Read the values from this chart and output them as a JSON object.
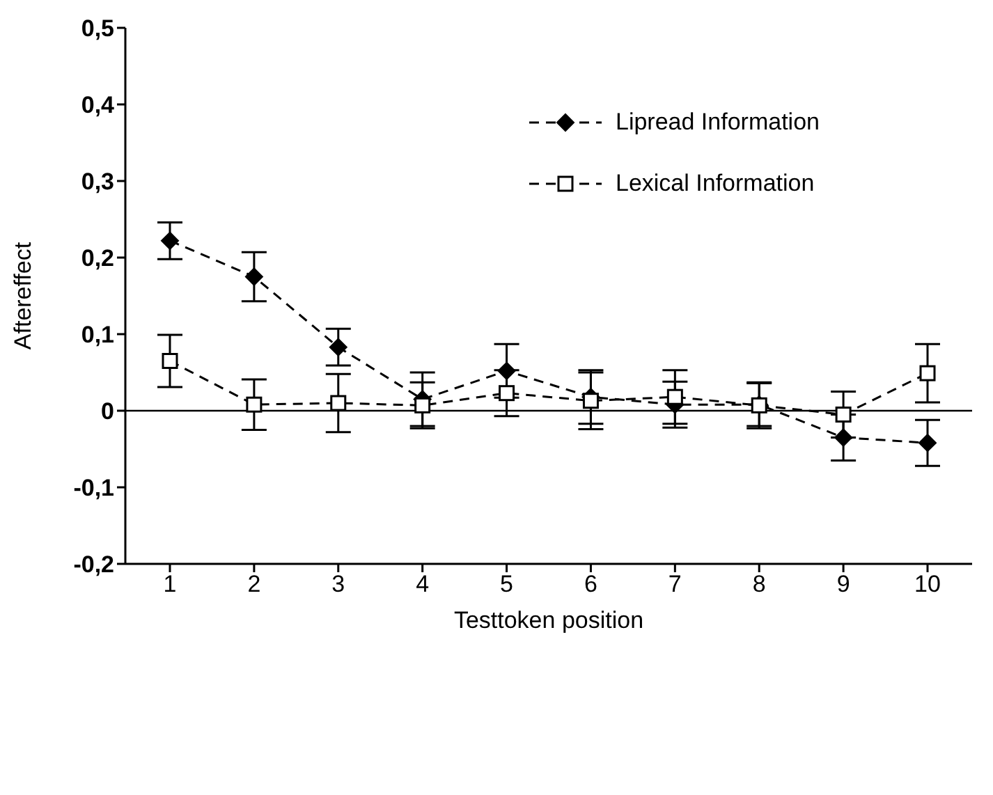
{
  "chart_data": {
    "type": "line",
    "xlabel": "Testtoken position",
    "ylabel": "Aftereffect",
    "categories": [
      "1",
      "2",
      "3",
      "4",
      "5",
      "6",
      "7",
      "8",
      "9",
      "10"
    ],
    "series": [
      {
        "name": "Lipread Information",
        "color": "#000000",
        "marker": "diamond",
        "line_style": "dashed",
        "values": [
          0.222,
          0.175,
          0.083,
          0.015,
          0.052,
          0.018,
          0.008,
          0.008,
          -0.035,
          -0.042
        ],
        "errors": [
          0.024,
          0.032,
          0.024,
          0.035,
          0.035,
          0.035,
          0.03,
          0.028,
          0.03,
          0.03
        ]
      },
      {
        "name": "Lexical Information",
        "color": "#000000",
        "marker": "square",
        "line_style": "dashed",
        "values": [
          0.065,
          0.008,
          0.01,
          0.007,
          0.023,
          0.013,
          0.018,
          0.007,
          -0.005,
          0.049
        ],
        "errors": [
          0.034,
          0.033,
          0.038,
          0.03,
          0.03,
          0.037,
          0.035,
          0.03,
          0.03,
          0.038
        ]
      }
    ],
    "ylim": [
      -0.2,
      0.5
    ],
    "yticks": [
      {
        "value": -0.2,
        "label": "-0,2"
      },
      {
        "value": -0.1,
        "label": "-0,1"
      },
      0,
      {
        "value": 0.1,
        "label": "0,1"
      },
      {
        "value": 0.2,
        "label": "0,2"
      },
      {
        "value": 0.3,
        "label": "0,3"
      },
      {
        "value": 0.4,
        "label": "0,4"
      },
      {
        "value": 0.5,
        "label": "0,5"
      }
    ],
    "ref_lines": [
      {
        "axis": "y",
        "value": 0,
        "color": "#000000"
      }
    ],
    "legend": "top right",
    "grid": false
  }
}
